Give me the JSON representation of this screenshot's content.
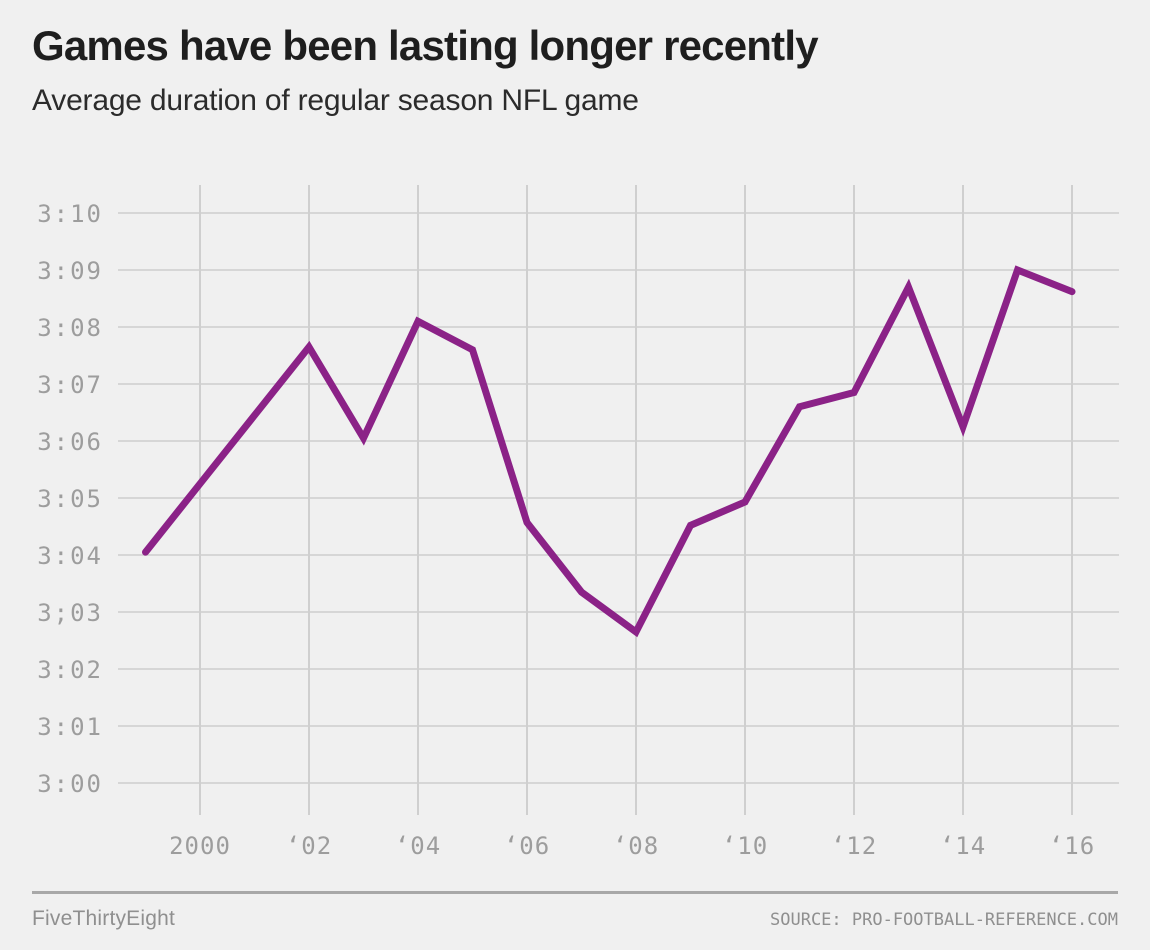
{
  "header": {
    "title": "Games have been lasting longer recently",
    "subtitle": "Average duration of regular season NFL game"
  },
  "footer": {
    "brand": "FiveThirtyEight",
    "source": "SOURCE: PRO-FOOTBALL-REFERENCE.COM"
  },
  "colors": {
    "background": "#f0f0f0",
    "line": "#8b2287",
    "grid_horizontal": "#d6d6d6",
    "grid_vertical": "#cfcfcf",
    "axis_text": "#9d9d9d",
    "title_text": "#1e1e1e",
    "footer_text": "#8f8f8f"
  },
  "chart_data": {
    "type": "line",
    "title": "Games have been lasting longer recently",
    "subtitle": "Average duration of regular season NFL game",
    "xlabel": "",
    "ylabel": "",
    "legend_position": "none",
    "grid": true,
    "line_color": "#8b2287",
    "x_range_years": [
      1999,
      2016
    ],
    "ylim_minutes_past_3_hours": [
      -0.55,
      10.5
    ],
    "x": [
      1999,
      2000,
      2001,
      2002,
      2003,
      2004,
      2005,
      2006,
      2007,
      2008,
      2009,
      2010,
      2011,
      2012,
      2013,
      2014,
      2015,
      2016
    ],
    "y_minutes_past_3_hours": [
      4.05,
      5.25,
      6.45,
      7.65,
      6.05,
      8.1,
      7.6,
      4.57,
      3.35,
      2.65,
      4.52,
      4.93,
      6.6,
      6.85,
      8.7,
      6.25,
      9.0,
      8.62
    ],
    "y_ticks": [
      {
        "label": "3:10",
        "minutes": 10
      },
      {
        "label": "3:09",
        "minutes": 9
      },
      {
        "label": "3:08",
        "minutes": 8
      },
      {
        "label": "3:07",
        "minutes": 7
      },
      {
        "label": "3:06",
        "minutes": 6
      },
      {
        "label": "3:05",
        "minutes": 5
      },
      {
        "label": "3:04",
        "minutes": 4
      },
      {
        "label": "3;03",
        "minutes": 3
      },
      {
        "label": "3:02",
        "minutes": 2
      },
      {
        "label": "3:01",
        "minutes": 1
      },
      {
        "label": "3:00",
        "minutes": 0
      }
    ],
    "x_ticks": [
      {
        "label": "2000",
        "year": 2000
      },
      {
        "label": "‘02",
        "year": 2002
      },
      {
        "label": "‘04",
        "year": 2004
      },
      {
        "label": "‘06",
        "year": 2006
      },
      {
        "label": "‘08",
        "year": 2008
      },
      {
        "label": "‘10",
        "year": 2010
      },
      {
        "label": "‘12",
        "year": 2012
      },
      {
        "label": "‘14",
        "year": 2014
      },
      {
        "label": "‘16",
        "year": 2016
      }
    ]
  }
}
